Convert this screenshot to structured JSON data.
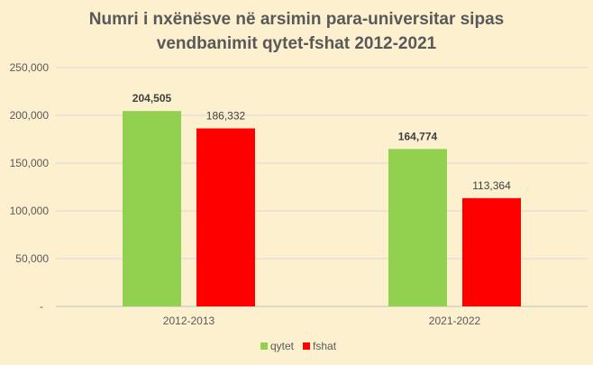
{
  "chart_data": {
    "type": "bar",
    "title_lines": [
      "Numri i nxënësve në arsimin para-universitar sipas",
      "vendbanimit qytet-fshat 2012-2021"
    ],
    "categories": [
      "2012-2013",
      "2021-2022"
    ],
    "series": [
      {
        "name": "qytet",
        "values": [
          204505,
          164774
        ],
        "color": "#92d050",
        "labels": [
          "204,505",
          "164,774"
        ],
        "label_bold": true
      },
      {
        "name": "fshat",
        "values": [
          186332,
          113364
        ],
        "color": "#ff0000",
        "labels": [
          "186,332",
          "113,364"
        ],
        "label_bold": false
      }
    ],
    "ylim": [
      0,
      250000
    ],
    "yticks": [
      0,
      50000,
      100000,
      150000,
      200000,
      250000
    ],
    "ytick_labels": [
      "-",
      "50,000",
      "100,000",
      "150,000",
      "200,000",
      "250,000"
    ],
    "grid": true,
    "legend": "bottom"
  }
}
